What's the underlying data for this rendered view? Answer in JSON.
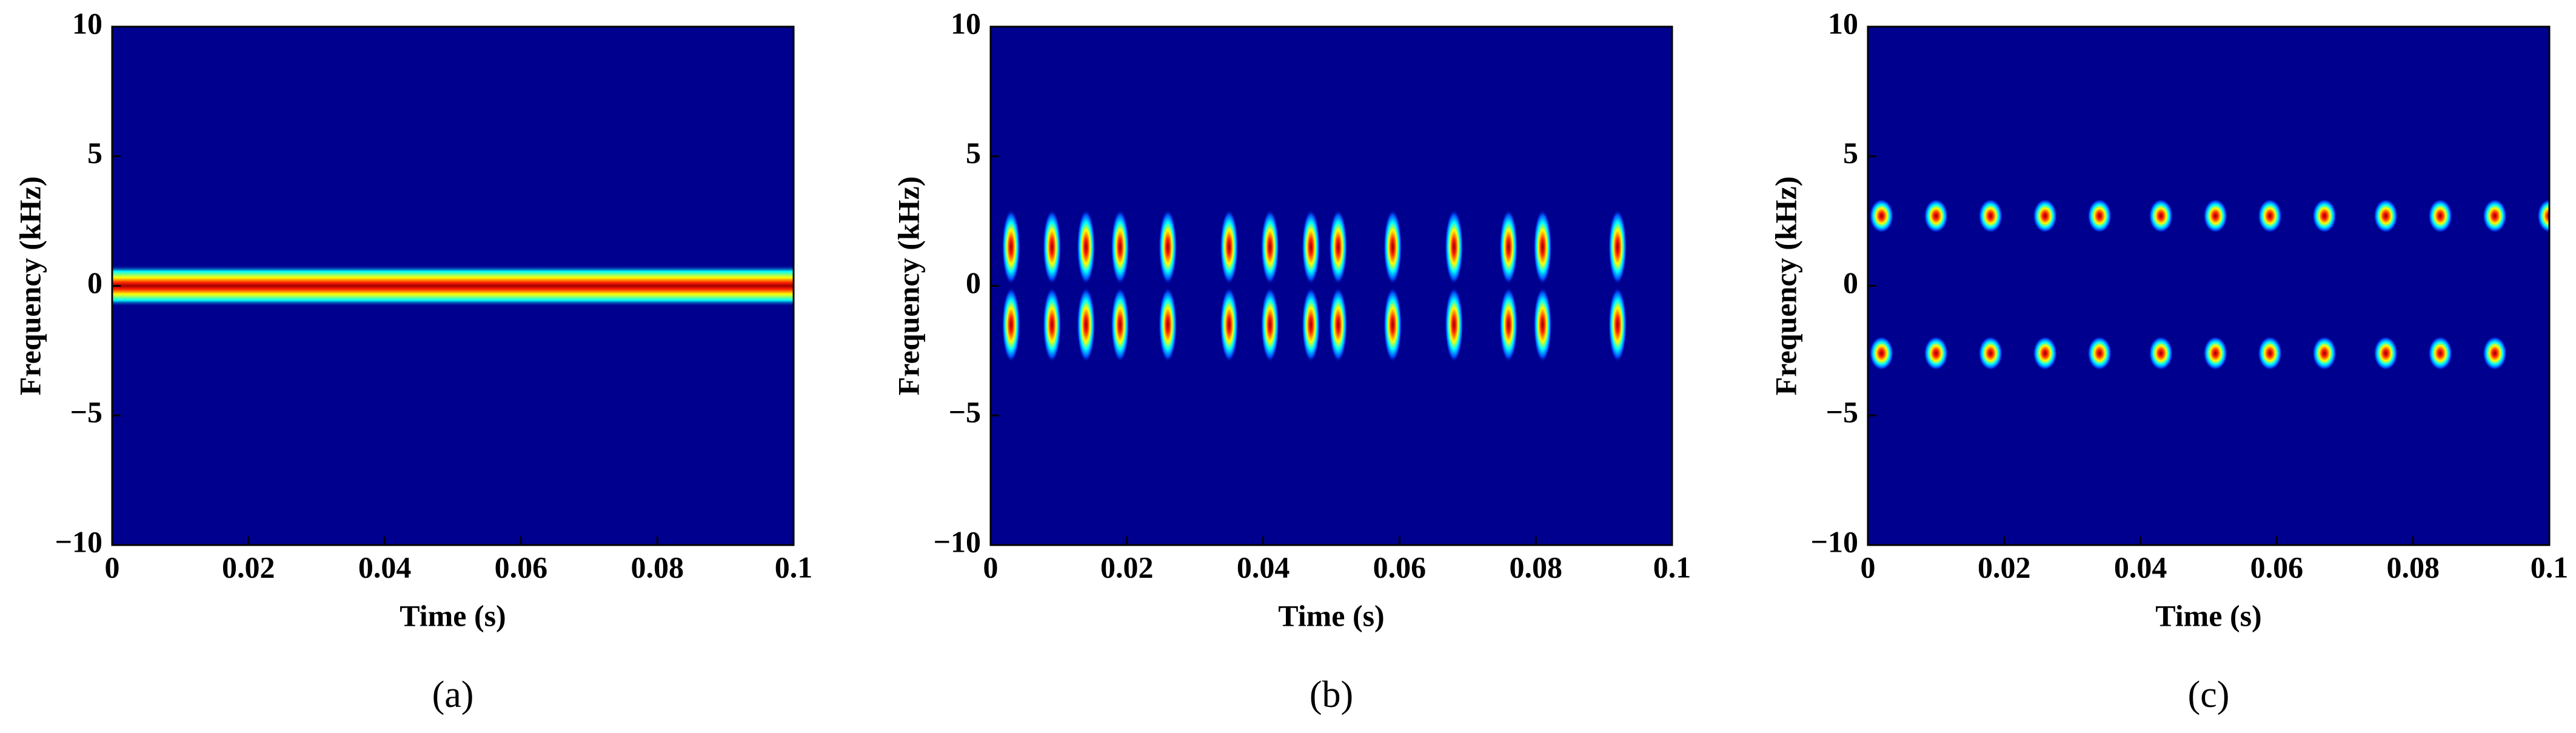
{
  "charts": [
    {
      "chart_data": {
        "type": "line",
        "xlabel": "Time (s)",
        "ylabel": "Frequency (kHz)",
        "caption": "(a)",
        "x": [
          0,
          0.1
        ],
        "series": [
          {
            "values": [
              0,
              0
            ]
          }
        ],
        "xlim": [
          0,
          0.1
        ],
        "ylim": [
          -10,
          10
        ],
        "xticks": [
          0,
          0.02,
          0.04,
          0.06,
          0.08,
          0.1
        ],
        "yticks": [
          {
            "value": -10,
            "label": "−10"
          },
          {
            "value": -5,
            "label": "−5"
          },
          0,
          5,
          10
        ],
        "background": "#00008f"
      }
    },
    {
      "chart_data": {
        "type": "scatter",
        "xlabel": "Time (s)",
        "ylabel": "Frequency (kHz)",
        "caption": "(b)",
        "x": [
          0.003,
          0.009,
          0.014,
          0.019,
          0.026,
          0.035,
          0.041,
          0.047,
          0.051,
          0.059,
          0.068,
          0.076,
          0.081,
          0.092
        ],
        "series": [
          {
            "values": [
              1.5,
              1.5,
              1.5,
              1.5,
              1.5,
              1.5,
              1.5,
              1.5,
              1.5,
              1.5,
              1.5,
              1.5,
              1.5,
              1.5
            ]
          },
          {
            "values": [
              -1.5,
              -1.5,
              -1.5,
              -1.5,
              -1.5,
              -1.5,
              -1.5,
              -1.5,
              -1.5,
              -1.5,
              -1.5,
              -1.5,
              -1.5,
              -1.5
            ]
          }
        ],
        "xlim": [
          0,
          0.1
        ],
        "ylim": [
          -10,
          10
        ],
        "xticks": [
          0,
          0.02,
          0.04,
          0.06,
          0.08,
          0.1
        ],
        "yticks": [
          {
            "value": -10,
            "label": "−10"
          },
          {
            "value": -5,
            "label": "−5"
          },
          0,
          5,
          10
        ],
        "background": "#00008f"
      }
    },
    {
      "chart_data": {
        "type": "scatter",
        "xlabel": "Time (s)",
        "ylabel": "Frequency (kHz)",
        "caption": "(c)",
        "x": [
          0.002,
          0.01,
          0.018,
          0.026,
          0.034,
          0.043,
          0.051,
          0.059,
          0.067,
          0.076,
          0.084,
          0.092,
          0.1
        ],
        "series": [
          {
            "values": [
              2.7,
              2.7,
              2.7,
              2.7,
              2.7,
              2.7,
              2.7,
              2.7,
              2.7,
              2.7,
              2.7,
              2.7,
              2.7
            ]
          },
          {
            "values": [
              -2.6,
              -2.6,
              -2.6,
              -2.6,
              -2.6,
              -2.6,
              -2.6,
              -2.6,
              -2.6,
              -2.6,
              -2.6,
              -2.6,
              null
            ]
          }
        ],
        "xlim": [
          0,
          0.1
        ],
        "ylim": [
          -10,
          10
        ],
        "xticks": [
          0,
          0.02,
          0.04,
          0.06,
          0.08,
          0.1
        ],
        "yticks": [
          {
            "value": -10,
            "label": "−10"
          },
          {
            "value": -5,
            "label": "−5"
          },
          0,
          5,
          10
        ],
        "background": "#00008f"
      }
    }
  ]
}
